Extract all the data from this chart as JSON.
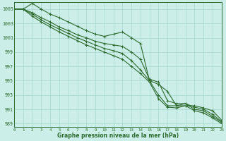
{
  "xlabel": "Graphe pression niveau de la mer (hPa)",
  "ylim": [
    988.5,
    1006.0
  ],
  "xlim": [
    0,
    23
  ],
  "yticks": [
    989,
    991,
    993,
    995,
    997,
    999,
    1001,
    1003,
    1005
  ],
  "xticks": [
    0,
    1,
    2,
    3,
    4,
    5,
    6,
    7,
    8,
    9,
    10,
    11,
    12,
    13,
    14,
    15,
    16,
    17,
    18,
    19,
    20,
    21,
    22,
    23
  ],
  "bg_color": "#cceee8",
  "grid_color": "#a8d8d0",
  "line_color": "#2d6a2d",
  "series": [
    [
      1005.0,
      1005.0,
      1005.8,
      1005.0,
      1004.3,
      1003.8,
      1003.2,
      1002.6,
      1002.0,
      1001.5,
      1001.2,
      1001.5,
      1001.8,
      1001.0,
      1000.2,
      995.0,
      994.5,
      993.5,
      991.5,
      991.5,
      991.5,
      991.2,
      990.8,
      989.5
    ],
    [
      1005.0,
      1005.0,
      1004.5,
      1003.8,
      1003.2,
      1002.5,
      1002.0,
      1001.4,
      1001.0,
      1000.5,
      1000.2,
      1000.0,
      999.8,
      999.0,
      998.0,
      995.2,
      994.8,
      992.2,
      991.8,
      991.8,
      991.3,
      991.0,
      990.3,
      989.3
    ],
    [
      1005.0,
      1005.0,
      1004.3,
      1003.5,
      1002.8,
      1002.2,
      1001.6,
      1001.0,
      1000.5,
      1000.0,
      999.5,
      999.2,
      998.8,
      997.8,
      996.5,
      995.0,
      993.0,
      991.5,
      991.5,
      991.8,
      991.0,
      990.8,
      990.0,
      989.2
    ],
    [
      1005.0,
      1005.0,
      1004.0,
      1003.2,
      1002.5,
      1001.8,
      1001.2,
      1000.6,
      1000.0,
      999.5,
      999.0,
      998.5,
      998.0,
      997.0,
      996.0,
      994.8,
      992.5,
      991.3,
      991.2,
      991.5,
      990.8,
      990.5,
      989.8,
      989.0
    ]
  ]
}
